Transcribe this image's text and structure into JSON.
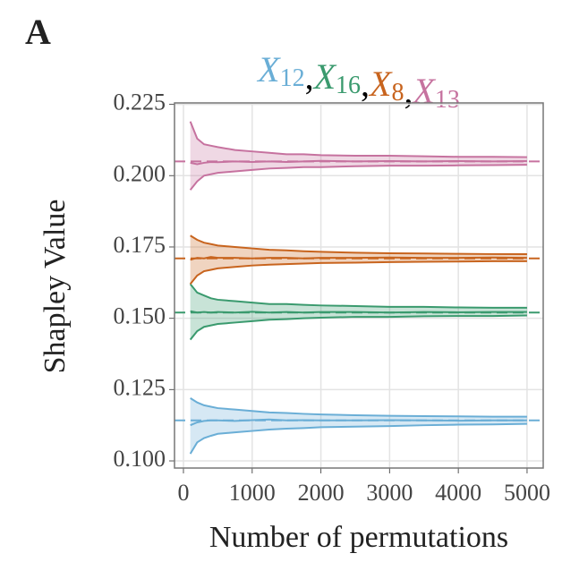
{
  "panel_label": "A",
  "chart_data": {
    "type": "band-line",
    "title_separator": ",",
    "xlabel": "Number of permutations",
    "ylabel": "Shapley Value",
    "x": [
      100,
      200,
      300,
      400,
      500,
      750,
      1000,
      1250,
      1500,
      1750,
      2000,
      2500,
      3000,
      3500,
      4000,
      4500,
      5000
    ],
    "xlim": [
      -130,
      5235
    ],
    "ylim": [
      0.0975,
      0.2255
    ],
    "xticks": [
      0,
      1000,
      2000,
      3000,
      4000,
      5000
    ],
    "yticks": [
      {
        "value": 0.1,
        "label": "0.100"
      },
      {
        "value": 0.125,
        "label": "0.125"
      },
      {
        "value": 0.15,
        "label": "0.150"
      },
      {
        "value": 0.175,
        "label": "0.175"
      },
      {
        "value": 0.2,
        "label": "0.200"
      },
      {
        "value": 0.225,
        "label": "0.225"
      }
    ],
    "grid": true,
    "series": [
      {
        "name": "X",
        "subscript": "12",
        "color": "#6aaed6",
        "reference": 0.1142,
        "values": [
          0.1125,
          0.1135,
          0.114,
          0.1142,
          0.1142,
          0.114,
          0.1143,
          0.1145,
          0.1142,
          0.1143,
          0.1142,
          0.1142,
          0.1143,
          0.1142,
          0.1141,
          0.1142,
          0.1142
        ],
        "upper": [
          0.122,
          0.1205,
          0.1195,
          0.119,
          0.1185,
          0.118,
          0.1175,
          0.117,
          0.1168,
          0.1165,
          0.1163,
          0.116,
          0.1158,
          0.1157,
          0.1156,
          0.1155,
          0.1155
        ],
        "lower": [
          0.1025,
          0.1065,
          0.108,
          0.1088,
          0.1095,
          0.11,
          0.1105,
          0.111,
          0.1113,
          0.1115,
          0.1118,
          0.112,
          0.1122,
          0.1125,
          0.1127,
          0.1128,
          0.113
        ]
      },
      {
        "name": "X",
        "subscript": "16",
        "color": "#3a9a6e",
        "reference": 0.152,
        "values": [
          0.1525,
          0.152,
          0.1522,
          0.152,
          0.1522,
          0.152,
          0.1523,
          0.152,
          0.1522,
          0.152,
          0.1522,
          0.1522,
          0.152,
          0.1522,
          0.1521,
          0.1522,
          0.1522
        ],
        "upper": [
          0.162,
          0.159,
          0.158,
          0.157,
          0.1565,
          0.156,
          0.1555,
          0.155,
          0.155,
          0.1547,
          0.1545,
          0.1543,
          0.154,
          0.154,
          0.1538,
          0.1537,
          0.1537
        ],
        "lower": [
          0.1425,
          0.1455,
          0.147,
          0.1475,
          0.148,
          0.1485,
          0.149,
          0.1495,
          0.1497,
          0.15,
          0.1502,
          0.1505,
          0.1505,
          0.1507,
          0.1508,
          0.1508,
          0.151
        ]
      },
      {
        "name": "X",
        "subscript": "8",
        "color": "#c8641e",
        "reference": 0.171,
        "values": [
          0.1705,
          0.1712,
          0.171,
          0.1715,
          0.1712,
          0.1712,
          0.171,
          0.1712,
          0.1712,
          0.171,
          0.1712,
          0.1712,
          0.1713,
          0.1712,
          0.1712,
          0.1713,
          0.1712
        ],
        "upper": [
          0.179,
          0.1775,
          0.1765,
          0.176,
          0.1755,
          0.175,
          0.1745,
          0.174,
          0.1738,
          0.1735,
          0.1733,
          0.173,
          0.1728,
          0.1727,
          0.1726,
          0.1725,
          0.1725
        ],
        "lower": [
          0.162,
          0.165,
          0.1665,
          0.167,
          0.1675,
          0.168,
          0.1685,
          0.1688,
          0.169,
          0.1692,
          0.1694,
          0.1695,
          0.1697,
          0.1698,
          0.1699,
          0.17,
          0.17
        ]
      },
      {
        "name": "X",
        "subscript": "13",
        "color": "#c6729f",
        "reference": 0.205,
        "values": [
          0.2045,
          0.204,
          0.2045,
          0.2048,
          0.2047,
          0.205,
          0.2048,
          0.205,
          0.2048,
          0.205,
          0.2052,
          0.205,
          0.2051,
          0.205,
          0.2051,
          0.205,
          0.2051
        ],
        "upper": [
          0.219,
          0.213,
          0.211,
          0.2105,
          0.21,
          0.209,
          0.2085,
          0.208,
          0.2075,
          0.2075,
          0.2072,
          0.207,
          0.207,
          0.2068,
          0.2066,
          0.2066,
          0.2065
        ],
        "lower": [
          0.195,
          0.198,
          0.2,
          0.2005,
          0.201,
          0.2015,
          0.202,
          0.2025,
          0.2027,
          0.203,
          0.203,
          0.2033,
          0.2035,
          0.2035,
          0.2036,
          0.2037,
          0.2038
        ]
      }
    ]
  }
}
